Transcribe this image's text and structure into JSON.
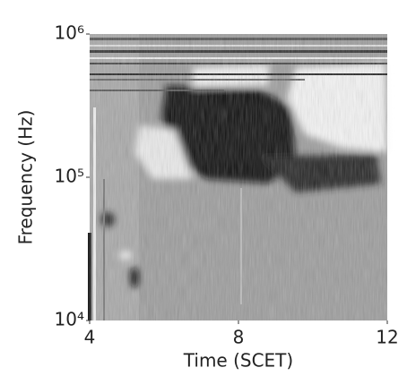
{
  "chart_data": {
    "type": "spectrogram",
    "xlabel": "Time (SCET)",
    "ylabel": "Frequency (Hz)",
    "xlim": [
      4,
      12
    ],
    "xticks": [
      4,
      8,
      12
    ],
    "ylim": [
      10000,
      1000000
    ],
    "log_y": true,
    "yticks": [
      {
        "value": 10000,
        "label": "10⁴"
      },
      {
        "value": 100000,
        "label": "10⁵"
      },
      {
        "value": 1000000,
        "label": "10⁶"
      }
    ]
  }
}
